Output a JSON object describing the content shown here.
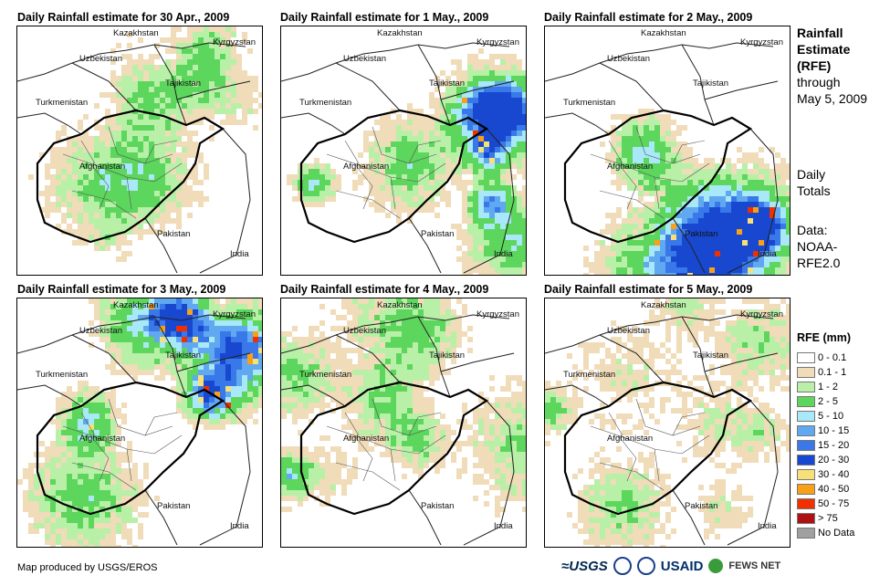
{
  "panels": [
    {
      "title": "Daily Rainfall estimate for 30 Apr., 2009",
      "seed": 11,
      "wet": 0.45,
      "heavy": 0.02
    },
    {
      "title": "Daily Rainfall estimate for 1 May., 2009",
      "seed": 23,
      "wet": 0.75,
      "heavy": 0.04
    },
    {
      "title": "Daily Rainfall estimate for 2 May., 2009",
      "seed": 37,
      "wet": 0.65,
      "heavy": 0.06
    },
    {
      "title": "Daily Rainfall estimate for 3 May., 2009",
      "seed": 41,
      "wet": 0.85,
      "heavy": 0.07
    },
    {
      "title": "Daily Rainfall estimate for 4 May., 2009",
      "seed": 53,
      "wet": 0.6,
      "heavy": 0.05
    },
    {
      "title": "Daily Rainfall estimate for 5 May., 2009",
      "seed": 67,
      "wet": 0.5,
      "heavy": 0.01
    }
  ],
  "map_labels": {
    "kazakhstan": "Kazakhstan",
    "kyrgyzstan": "Kyrgyzstan",
    "uzbekistan": "Uzbekistan",
    "tajikistan": "Tajikistan",
    "turkmenistan": "Turkmenistan",
    "afghanistan": "Afghanistan",
    "pakistan": "Pakistan",
    "india": "India"
  },
  "side": {
    "title_line1": "Rainfall",
    "title_line2": "Estimate",
    "title_line3": "(RFE)",
    "through": "through",
    "date": "May 5, 2009",
    "daily": "Daily",
    "totals": "Totals",
    "data_label": "Data:",
    "source1": "NOAA-",
    "source2": "RFE2.0"
  },
  "legend": {
    "title": "RFE (mm)",
    "items": [
      {
        "label": "0 - 0.1",
        "color": "#ffffff"
      },
      {
        "label": "0.1 - 1",
        "color": "#f0dcb8"
      },
      {
        "label": "1 - 2",
        "color": "#b8f0a8"
      },
      {
        "label": "2 - 5",
        "color": "#5cd65c"
      },
      {
        "label": "5 - 10",
        "color": "#a8e8f8"
      },
      {
        "label": "10 - 15",
        "color": "#60a8f0"
      },
      {
        "label": "15 - 20",
        "color": "#3878e8"
      },
      {
        "label": "20 - 30",
        "color": "#1848d0"
      },
      {
        "label": "30 - 40",
        "color": "#f8e078"
      },
      {
        "label": "40 - 50",
        "color": "#f8a018"
      },
      {
        "label": "50 - 75",
        "color": "#f03000"
      },
      {
        "label": "> 75",
        "color": "#b01010"
      },
      {
        "label": "No Data",
        "color": "#a0a0a0"
      }
    ]
  },
  "footer": {
    "credit": "Map produced by USGS/EROS",
    "usgs": "≈USGS",
    "usaid": "USAID",
    "fews": "FEWS NET"
  }
}
